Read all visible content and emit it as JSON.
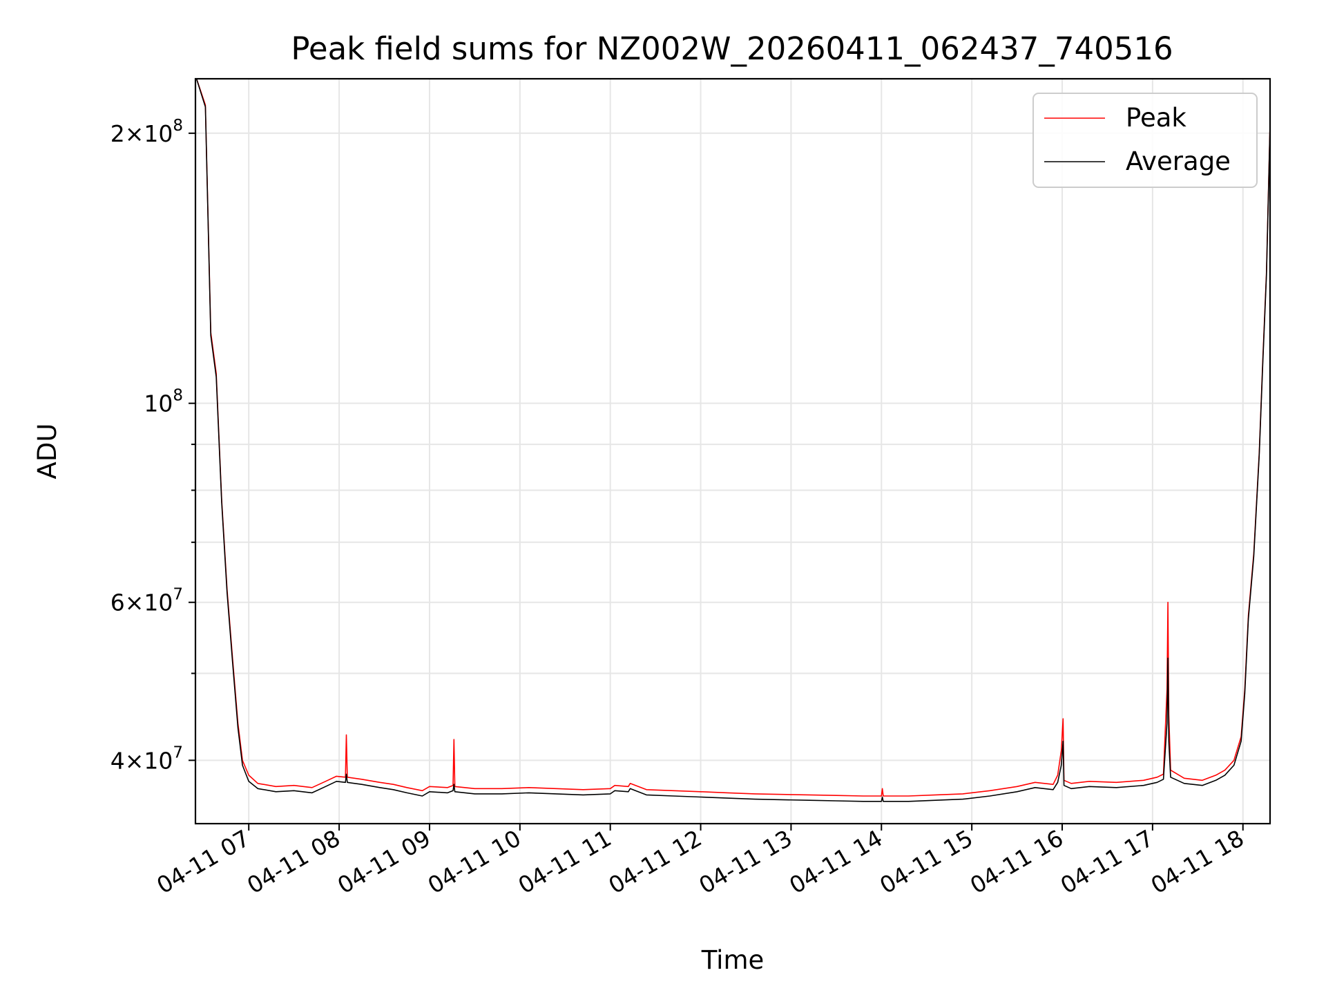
{
  "chart_data": {
    "type": "line",
    "title": "Peak field sums for NZ002W_20260411_062437_740516",
    "xlabel": "Time",
    "ylabel": "ADU",
    "yscale": "log",
    "ylim": [
      34000000,
      230000000
    ],
    "xlim_hours": [
      6.41,
      18.3
    ],
    "grid": true,
    "legend_position": "top-right",
    "x_tick_labels": [
      "04-11 07",
      "04-11 08",
      "04-11 09",
      "04-11 10",
      "04-11 11",
      "04-11 12",
      "04-11 13",
      "04-11 14",
      "04-11 15",
      "04-11 16",
      "04-11 17",
      "04-11 18"
    ],
    "x_tick_hours": [
      7,
      8,
      9,
      10,
      11,
      12,
      13,
      14,
      15,
      16,
      17,
      18
    ],
    "y_major_ticks": [
      {
        "value": 40000000,
        "mantissa": "4",
        "exp": "7"
      },
      {
        "value": 60000000,
        "mantissa": "6",
        "exp": "7"
      },
      {
        "value": 100000000,
        "mantissa": "",
        "exp": "8"
      },
      {
        "value": 200000000,
        "mantissa": "2",
        "exp": "8"
      }
    ],
    "y_minor_ticks": [
      50000000,
      70000000,
      80000000,
      90000000
    ],
    "series": [
      {
        "name": "Peak",
        "color": "#ff0000",
        "points": [
          [
            6.41,
            232000000
          ],
          [
            6.52,
            215000000
          ],
          [
            6.58,
            120000000
          ],
          [
            6.64,
            108000000
          ],
          [
            6.7,
            78000000
          ],
          [
            6.76,
            62000000
          ],
          [
            6.82,
            52000000
          ],
          [
            6.88,
            44000000
          ],
          [
            6.93,
            40000000
          ],
          [
            7.0,
            38500000
          ],
          [
            7.1,
            37700000
          ],
          [
            7.3,
            37400000
          ],
          [
            7.5,
            37500000
          ],
          [
            7.7,
            37300000
          ],
          [
            7.85,
            37900000
          ],
          [
            7.97,
            38400000
          ],
          [
            8.07,
            38300000
          ],
          [
            8.08,
            42700000
          ],
          [
            8.09,
            38300000
          ],
          [
            8.25,
            38100000
          ],
          [
            8.45,
            37800000
          ],
          [
            8.6,
            37600000
          ],
          [
            8.75,
            37300000
          ],
          [
            8.92,
            37000000
          ],
          [
            9.0,
            37400000
          ],
          [
            9.2,
            37300000
          ],
          [
            9.26,
            37500000
          ],
          [
            9.27,
            42200000
          ],
          [
            9.28,
            37400000
          ],
          [
            9.5,
            37200000
          ],
          [
            9.8,
            37200000
          ],
          [
            10.1,
            37300000
          ],
          [
            10.4,
            37200000
          ],
          [
            10.7,
            37100000
          ],
          [
            11.0,
            37200000
          ],
          [
            11.05,
            37500000
          ],
          [
            11.2,
            37400000
          ],
          [
            11.22,
            37700000
          ],
          [
            11.4,
            37100000
          ],
          [
            11.7,
            37000000
          ],
          [
            12.0,
            36900000
          ],
          [
            12.3,
            36800000
          ],
          [
            12.6,
            36700000
          ],
          [
            12.9,
            36650000
          ],
          [
            13.2,
            36600000
          ],
          [
            13.5,
            36550000
          ],
          [
            13.8,
            36500000
          ],
          [
            14.0,
            36500000
          ],
          [
            14.01,
            37200000
          ],
          [
            14.02,
            36500000
          ],
          [
            14.3,
            36500000
          ],
          [
            14.6,
            36600000
          ],
          [
            14.9,
            36700000
          ],
          [
            15.2,
            37000000
          ],
          [
            15.5,
            37400000
          ],
          [
            15.7,
            37800000
          ],
          [
            15.9,
            37600000
          ],
          [
            15.95,
            38500000
          ],
          [
            15.99,
            41000000
          ],
          [
            16.01,
            44500000
          ],
          [
            16.02,
            38000000
          ],
          [
            16.1,
            37700000
          ],
          [
            16.3,
            37900000
          ],
          [
            16.6,
            37800000
          ],
          [
            16.9,
            38000000
          ],
          [
            17.05,
            38300000
          ],
          [
            17.12,
            38600000
          ],
          [
            17.16,
            48000000
          ],
          [
            17.17,
            60000000
          ],
          [
            17.18,
            45000000
          ],
          [
            17.2,
            39000000
          ],
          [
            17.35,
            38200000
          ],
          [
            17.55,
            38000000
          ],
          [
            17.7,
            38500000
          ],
          [
            17.8,
            39000000
          ],
          [
            17.9,
            40000000
          ],
          [
            17.98,
            42500000
          ],
          [
            18.02,
            48000000
          ],
          [
            18.06,
            58000000
          ],
          [
            18.12,
            68000000
          ],
          [
            18.18,
            88000000
          ],
          [
            18.22,
            112000000
          ],
          [
            18.26,
            140000000
          ],
          [
            18.3,
            205000000
          ]
        ]
      },
      {
        "name": "Average",
        "color": "#000000",
        "points": [
          [
            6.41,
            232000000
          ],
          [
            6.52,
            214000000
          ],
          [
            6.58,
            119000000
          ],
          [
            6.64,
            107000000
          ],
          [
            6.7,
            77500000
          ],
          [
            6.76,
            61500000
          ],
          [
            6.82,
            51500000
          ],
          [
            6.88,
            43500000
          ],
          [
            6.93,
            39500000
          ],
          [
            7.0,
            37900000
          ],
          [
            7.1,
            37200000
          ],
          [
            7.3,
            36900000
          ],
          [
            7.5,
            37000000
          ],
          [
            7.7,
            36800000
          ],
          [
            7.85,
            37400000
          ],
          [
            7.97,
            37900000
          ],
          [
            8.07,
            37800000
          ],
          [
            8.08,
            38600000
          ],
          [
            8.09,
            37800000
          ],
          [
            8.25,
            37600000
          ],
          [
            8.45,
            37300000
          ],
          [
            8.6,
            37100000
          ],
          [
            8.75,
            36800000
          ],
          [
            8.92,
            36500000
          ],
          [
            9.0,
            36900000
          ],
          [
            9.2,
            36800000
          ],
          [
            9.26,
            37000000
          ],
          [
            9.27,
            37600000
          ],
          [
            9.28,
            36900000
          ],
          [
            9.5,
            36700000
          ],
          [
            9.8,
            36700000
          ],
          [
            10.1,
            36800000
          ],
          [
            10.4,
            36700000
          ],
          [
            10.7,
            36600000
          ],
          [
            11.0,
            36700000
          ],
          [
            11.05,
            37000000
          ],
          [
            11.2,
            36900000
          ],
          [
            11.22,
            37200000
          ],
          [
            11.4,
            36600000
          ],
          [
            11.7,
            36500000
          ],
          [
            12.0,
            36400000
          ],
          [
            12.3,
            36300000
          ],
          [
            12.6,
            36200000
          ],
          [
            12.9,
            36150000
          ],
          [
            13.2,
            36100000
          ],
          [
            13.5,
            36050000
          ],
          [
            13.8,
            36000000
          ],
          [
            14.0,
            36000000
          ],
          [
            14.01,
            36400000
          ],
          [
            14.02,
            36000000
          ],
          [
            14.3,
            36000000
          ],
          [
            14.6,
            36100000
          ],
          [
            14.9,
            36200000
          ],
          [
            15.2,
            36500000
          ],
          [
            15.5,
            36900000
          ],
          [
            15.7,
            37300000
          ],
          [
            15.9,
            37100000
          ],
          [
            15.95,
            37800000
          ],
          [
            15.99,
            39500000
          ],
          [
            16.01,
            42000000
          ],
          [
            16.02,
            37500000
          ],
          [
            16.1,
            37200000
          ],
          [
            16.3,
            37400000
          ],
          [
            16.6,
            37300000
          ],
          [
            16.9,
            37500000
          ],
          [
            17.05,
            37800000
          ],
          [
            17.12,
            38100000
          ],
          [
            17.16,
            44000000
          ],
          [
            17.17,
            52000000
          ],
          [
            17.18,
            42000000
          ],
          [
            17.2,
            38300000
          ],
          [
            17.35,
            37700000
          ],
          [
            17.55,
            37500000
          ],
          [
            17.7,
            38000000
          ],
          [
            17.8,
            38500000
          ],
          [
            17.9,
            39500000
          ],
          [
            17.98,
            42000000
          ],
          [
            18.02,
            47500000
          ],
          [
            18.06,
            57500000
          ],
          [
            18.12,
            67500000
          ],
          [
            18.18,
            87500000
          ],
          [
            18.22,
            111000000
          ],
          [
            18.26,
            139000000
          ],
          [
            18.3,
            204000000
          ]
        ]
      }
    ]
  }
}
